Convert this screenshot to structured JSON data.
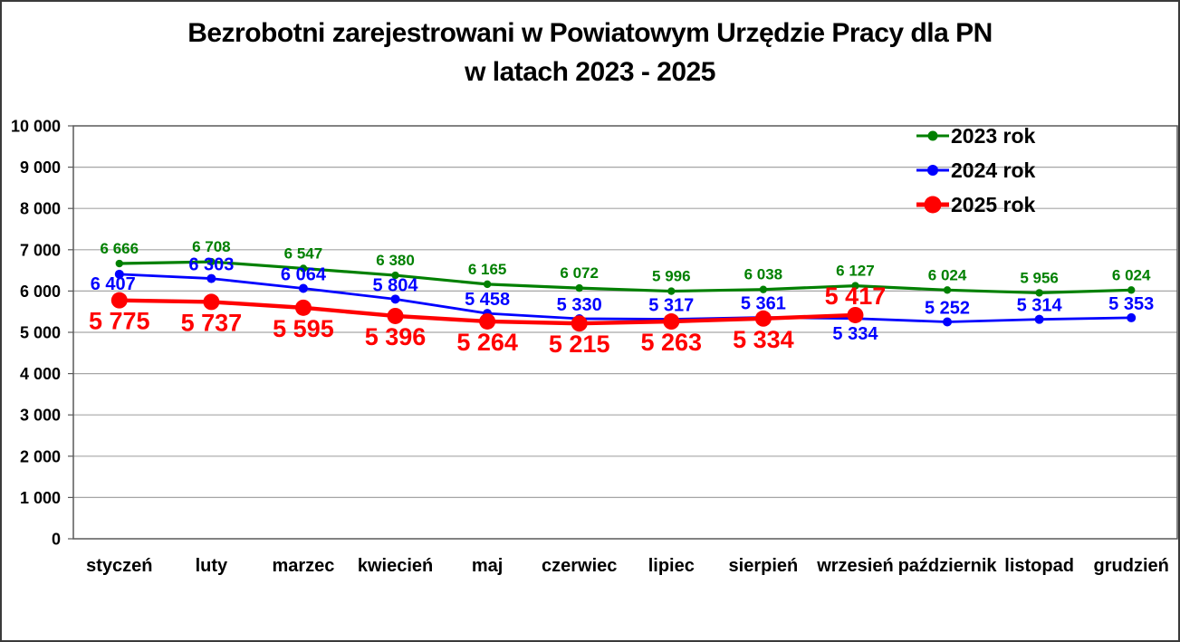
{
  "title": {
    "line1": "Bezrobotni zarejestrowani w Powiatowym Urzędzie Pracy dla PN",
    "line2": "w latach 2023 - 2025"
  },
  "chart_data": {
    "type": "line",
    "title": "Bezrobotni zarejestrowani w Powiatowym Urzędzie Pracy dla PN w latach 2023 - 2025",
    "categories": [
      "styczeń",
      "luty",
      "marzec",
      "kwiecień",
      "maj",
      "czerwiec",
      "lipiec",
      "sierpień",
      "wrzesień",
      "październik",
      "listopad",
      "grudzień"
    ],
    "series": [
      {
        "name": "2023 rok",
        "color": "#008000",
        "values": [
          6666,
          6708,
          6547,
          6380,
          6165,
          6072,
          5996,
          6038,
          6127,
          6024,
          5956,
          6024
        ],
        "label_position": "above",
        "label_overrides": {}
      },
      {
        "name": "2024 rok",
        "color": "#0000ff",
        "values": [
          6407,
          6303,
          6064,
          5804,
          5458,
          5330,
          5317,
          5361,
          5334,
          5252,
          5314,
          5353
        ],
        "label_position": "above",
        "label_overrides": {
          "0": "below",
          "8": "below"
        }
      },
      {
        "name": "2025 rok",
        "color": "#ff0000",
        "values": [
          5775,
          5737,
          5595,
          5396,
          5264,
          5215,
          5263,
          5334,
          5417,
          null,
          null,
          null
        ],
        "label_position": "below",
        "label_overrides": {
          "8": "above"
        }
      }
    ],
    "ylim": [
      0,
      10000
    ],
    "ytick_step": 1000,
    "ytick_labels": [
      "0",
      "1 000",
      "2 000",
      "3 000",
      "4 000",
      "5 000",
      "6 000",
      "7 000",
      "8 000",
      "9 000",
      "10 000"
    ],
    "xlabel": "",
    "ylabel": "",
    "grid": "horizontal-major",
    "legend_position": "top-right",
    "number_format": "thousands-space"
  },
  "colors": {
    "grid": "#a6a6a6",
    "plot_border": "#595959",
    "text": "#000000",
    "background": "#ffffff"
  }
}
